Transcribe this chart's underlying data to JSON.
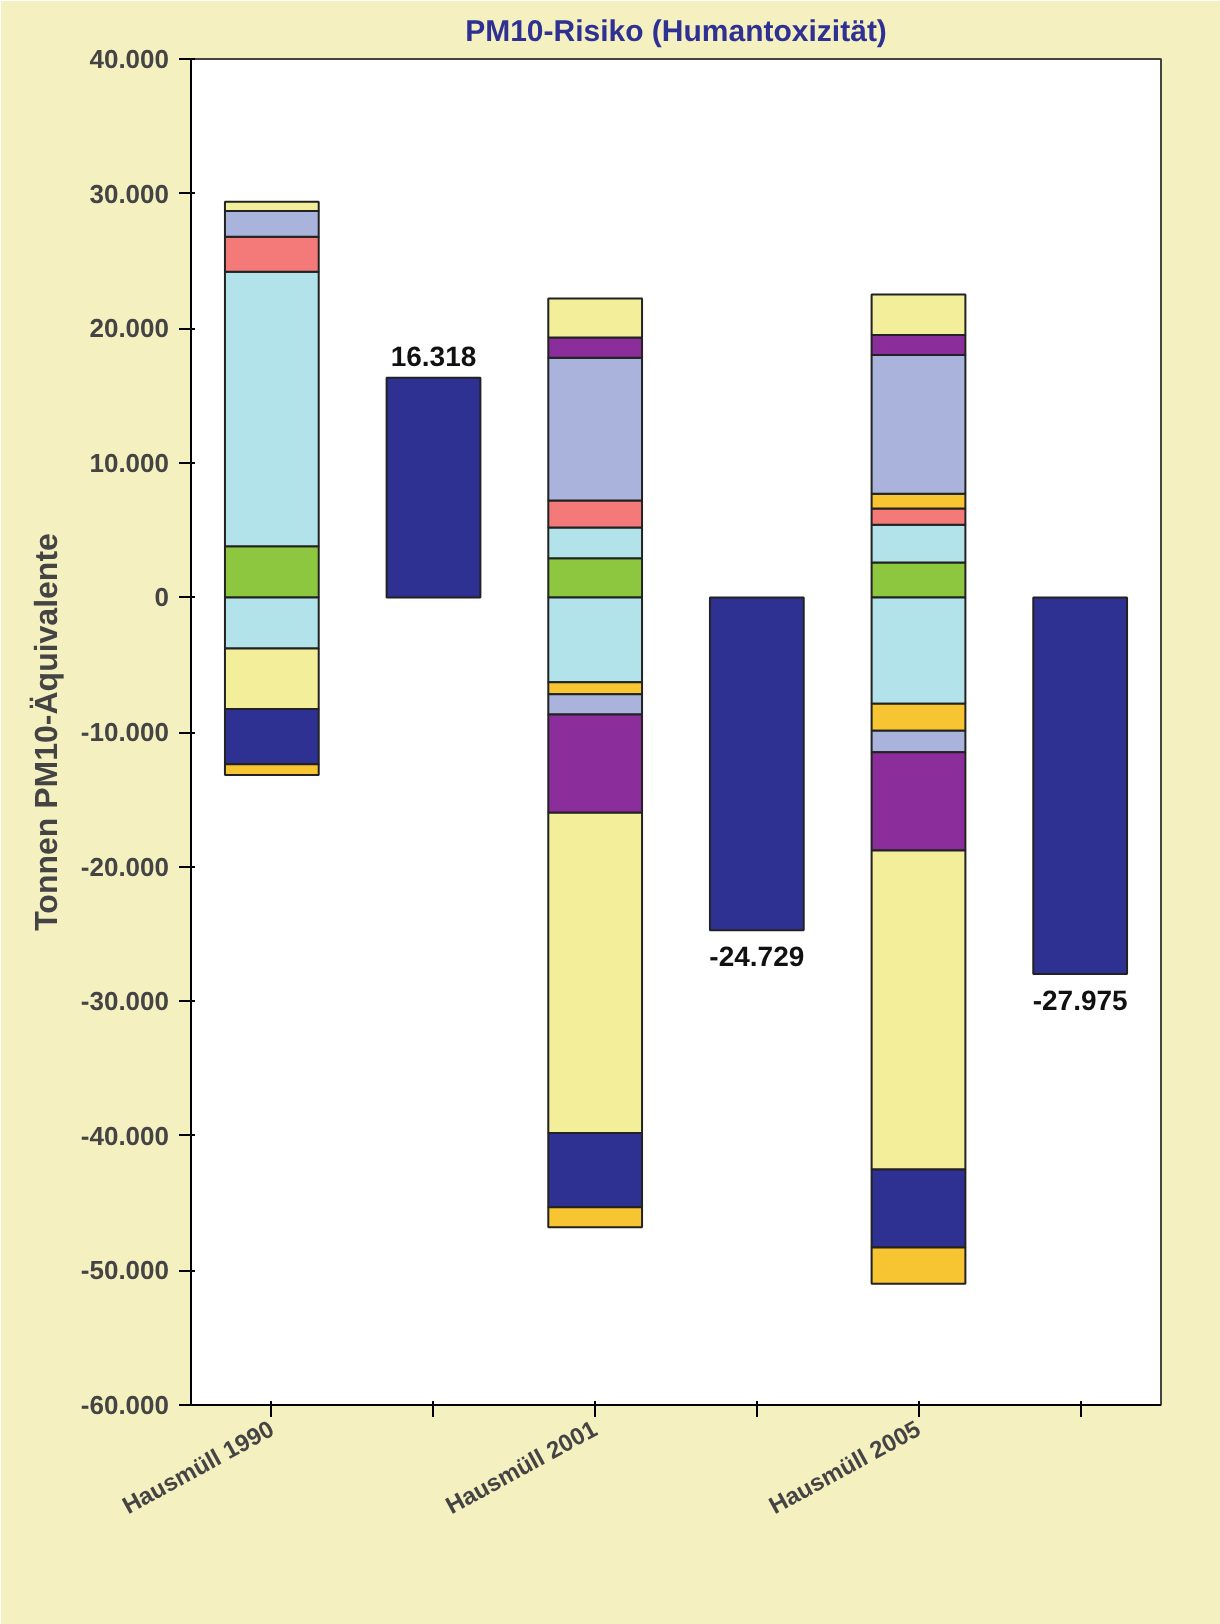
{
  "chart_data": {
    "type": "bar",
    "title": "PM10-Risiko (Humantoxizität)",
    "ylabel": "Tonnen PM10-Äquivalente",
    "stacked": true,
    "grid": false,
    "categories": [
      "Hausmüll 1990",
      null,
      "Hausmüll 2001",
      null,
      "Hausmüll 2005",
      null
    ],
    "ylim": [
      -60000,
      40000
    ],
    "yticks": [
      {
        "value": -60000,
        "label": "-60.000"
      },
      {
        "value": -50000,
        "label": "-50.000"
      },
      {
        "value": -40000,
        "label": "-40.000"
      },
      {
        "value": -30000,
        "label": "-30.000"
      },
      {
        "value": -20000,
        "label": "-20.000"
      },
      {
        "value": -10000,
        "label": "-10.000"
      },
      0,
      {
        "value": 10000,
        "label": "10.000"
      },
      {
        "value": 20000,
        "label": "20.000"
      },
      {
        "value": 30000,
        "label": "30.000"
      },
      {
        "value": 40000,
        "label": "40.000"
      }
    ],
    "series": [
      {
        "color": "#8dc63f",
        "values": [
          3800,
          null,
          2900,
          null,
          2600,
          null
        ]
      },
      {
        "color": "#b3e3ea",
        "values": [
          20400,
          null,
          2300,
          null,
          2800,
          null
        ]
      },
      {
        "color": "#f47a7a",
        "values": [
          2600,
          null,
          2000,
          null,
          1200,
          null
        ]
      },
      {
        "color": "#f7c531",
        "values": [
          null,
          null,
          null,
          null,
          1100,
          null
        ]
      },
      {
        "color": "#a9b3dc",
        "values": [
          1900,
          null,
          10600,
          null,
          10300,
          null
        ]
      },
      {
        "color": "#8b2d9b",
        "values": [
          null,
          null,
          1500,
          null,
          1500,
          null
        ]
      },
      {
        "color": "#f3ee9a",
        "values": [
          700,
          null,
          2900,
          null,
          3000,
          null
        ]
      },
      {
        "color": "#b3e3ea",
        "values": [
          -3800,
          null,
          -6300,
          null,
          -7900,
          null
        ]
      },
      {
        "color": "#f7c531",
        "values": [
          null,
          null,
          -900,
          null,
          -2000,
          null
        ]
      },
      {
        "color": "#a9b3dc",
        "values": [
          null,
          null,
          -1500,
          null,
          -1600,
          null
        ]
      },
      {
        "color": "#8b2d9b",
        "values": [
          null,
          null,
          -7300,
          null,
          -7300,
          null
        ]
      },
      {
        "color": "#f3ee9a",
        "values": [
          -4500,
          null,
          -23800,
          null,
          -23700,
          null
        ]
      },
      {
        "color": "#2e3192",
        "values": [
          -4100,
          null,
          -5500,
          null,
          -5800,
          null
        ]
      },
      {
        "color": "#f7c531",
        "values": [
          -800,
          null,
          -1500,
          null,
          -2700,
          null
        ]
      },
      {
        "color": "#2e3192",
        "values": [
          null,
          16318,
          null,
          -24729,
          null,
          -27975
        ],
        "value_labels": [
          null,
          "16.318",
          null,
          "-24.729",
          null,
          "-27.975"
        ]
      }
    ]
  }
}
